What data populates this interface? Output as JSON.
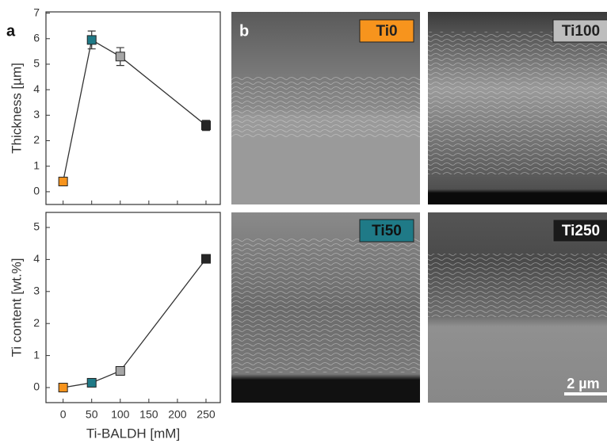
{
  "chart_data": [
    {
      "type": "line",
      "ylabel": "Thickness [µm]",
      "x": [
        0,
        50,
        100,
        250
      ],
      "series": [
        {
          "color": "#333333",
          "values": [
            0.4,
            5.95,
            5.3,
            2.6
          ],
          "errors": [
            0.15,
            0.35,
            0.35,
            0.2
          ],
          "point_colors": [
            "#f7941d",
            "#1f7a87",
            "#a6a6a6",
            "#262626"
          ]
        }
      ],
      "xlim": [
        -30,
        275
      ],
      "xticks": [
        0,
        50,
        100,
        150,
        200,
        250
      ],
      "show_xtick_labels": false,
      "ylim": [
        -0.5,
        7.05
      ],
      "yticks": [
        0,
        1,
        2,
        3,
        4,
        5,
        6,
        7
      ]
    },
    {
      "type": "line",
      "ylabel": "Ti content [wt.%]",
      "xlabel": "Ti-BALDH [mM]",
      "x": [
        0,
        50,
        100,
        250
      ],
      "series": [
        {
          "color": "#333333",
          "values": [
            0,
            0.15,
            0.52,
            4.02
          ],
          "errors": [
            0.03,
            0.05,
            0.06,
            0.05
          ],
          "point_colors": [
            "#f7941d",
            "#1f7a87",
            "#a6a6a6",
            "#262626"
          ]
        }
      ],
      "xlim": [
        -30,
        275
      ],
      "xticks": [
        0,
        50,
        100,
        150,
        200,
        250
      ],
      "show_xtick_labels": true,
      "ylim": [
        -0.47,
        5.47
      ],
      "yticks": [
        0,
        1,
        2,
        3,
        4,
        5
      ]
    }
  ],
  "panel_labels": [
    "a",
    "b"
  ],
  "images": [
    {
      "label": "Ti0"
    },
    {
      "label": "Ti100"
    },
    {
      "label": "Ti50"
    },
    {
      "label": "Ti250"
    }
  ],
  "scale_bar": "2 µm"
}
